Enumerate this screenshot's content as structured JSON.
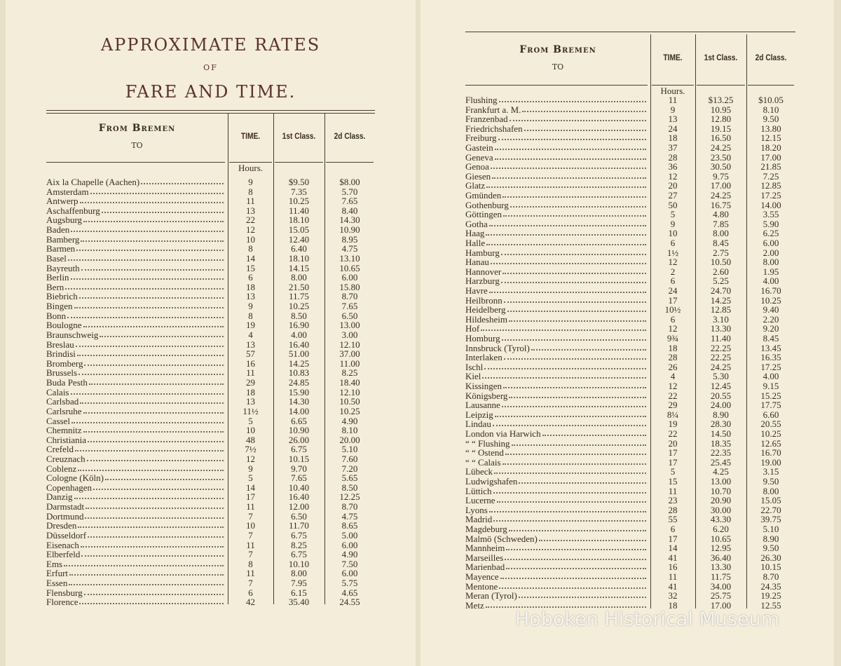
{
  "left_page": {
    "title": [
      "APPROXIMATE RATES",
      "OF",
      "FARE AND TIME."
    ],
    "header": {
      "from": "From Bremen",
      "to": "to",
      "time": "TIME.",
      "first": "1st Class.",
      "second": "2d Class."
    },
    "units": "Hours.",
    "rows": [
      [
        "Aix la Chapelle (Aachen)",
        "9",
        "$9.50",
        "$8.00"
      ],
      [
        "Amsterdam",
        "8",
        "7.35",
        "5.70"
      ],
      [
        "Antwerp",
        "11",
        "10.25",
        "7.65"
      ],
      [
        "Aschaffenburg",
        "13",
        "11.40",
        "8.40"
      ],
      [
        "Augsburg",
        "22",
        "18.10",
        "14.30"
      ],
      [
        "Baden",
        "12",
        "15.05",
        "10.90"
      ],
      [
        "Bamberg",
        "10",
        "12.40",
        "8.95"
      ],
      [
        "Barmen",
        "8",
        "6.40",
        "4.75"
      ],
      [
        "Basel",
        "14",
        "18.10",
        "13.10"
      ],
      [
        "Bayreuth",
        "15",
        "14.15",
        "10.65"
      ],
      [
        "Berlin",
        "6",
        "8.00",
        "6.00"
      ],
      [
        "Bern",
        "18",
        "21.50",
        "15.80"
      ],
      [
        "Biebrich",
        "13",
        "11.75",
        "8.70"
      ],
      [
        "Bingen",
        "9",
        "10.25",
        "7.65"
      ],
      [
        "Bonn",
        "8",
        "8.50",
        "6.50"
      ],
      [
        "Boulogne",
        "19",
        "16.90",
        "13.00"
      ],
      [
        "Braunschweig",
        "4",
        "4.00",
        "3.00"
      ],
      [
        "Breslau",
        "13",
        "16.40",
        "12.10"
      ],
      [
        "Brindisi",
        "57",
        "51.00",
        "37.00"
      ],
      [
        "Bromberg",
        "16",
        "14.25",
        "11.00"
      ],
      [
        "Brussels",
        "11",
        "10.83",
        "8.25"
      ],
      [
        "Buda Pesth",
        "29",
        "24.85",
        "18.40"
      ],
      [
        "Calais",
        "18",
        "15.90",
        "12.10"
      ],
      [
        "Carlsbad",
        "13",
        "14.30",
        "10.50"
      ],
      [
        "Carlsruhe",
        "11½",
        "14.00",
        "10.25"
      ],
      [
        "Cassel",
        "5",
        "6.65",
        "4.90"
      ],
      [
        "Chemnitz",
        "10",
        "10.90",
        "8.10"
      ],
      [
        "Christiania",
        "48",
        "26.00",
        "20.00"
      ],
      [
        "Crefeld",
        "7½",
        "6.75",
        "5.10"
      ],
      [
        "Creuznach",
        "12",
        "10.15",
        "7.60"
      ],
      [
        "Coblenz",
        "9",
        "9.70",
        "7.20"
      ],
      [
        "Cologne (Köln)",
        "5",
        "7.65",
        "5.65"
      ],
      [
        "Copenhagen",
        "14",
        "10.40",
        "8.50"
      ],
      [
        "Danzig",
        "17",
        "16.40",
        "12.25"
      ],
      [
        "Darmstadt",
        "11",
        "12.00",
        "8.70"
      ],
      [
        "Dortmund",
        "7",
        "6.50",
        "4.75"
      ],
      [
        "Dresden",
        "10",
        "11.70",
        "8.65"
      ],
      [
        "Düsseldorf",
        "7",
        "6.75",
        "5.00"
      ],
      [
        "Eisenach",
        "11",
        "8.25",
        "6.00"
      ],
      [
        "Elberfeld",
        "7",
        "6.75",
        "4.90"
      ],
      [
        "Ems",
        "8",
        "10.10",
        "7.50"
      ],
      [
        "Erfurt",
        "11",
        "8.00",
        "6.00"
      ],
      [
        "Essen",
        "7",
        "7.95",
        "5.75"
      ],
      [
        "Flensburg",
        "6",
        "6.15",
        "4.65"
      ],
      [
        "Florence",
        "42",
        "35.40",
        "24.55"
      ]
    ]
  },
  "right_page": {
    "header": {
      "from": "From Bremen",
      "to": "to",
      "time": "TIME.",
      "first": "1st Class.",
      "second": "2d Class."
    },
    "units": "Hours.",
    "rows": [
      [
        "Flushing",
        "11",
        "$13.25",
        "$10.05"
      ],
      [
        "Frankfurt a. M.",
        "9",
        "10.95",
        "8.10"
      ],
      [
        "Franzenbad",
        "13",
        "12.80",
        "9.50"
      ],
      [
        "Friedrichshafen",
        "24",
        "19.15",
        "13.80"
      ],
      [
        "Freiburg",
        "18",
        "16.50",
        "12.15"
      ],
      [
        "Gastein",
        "37",
        "24.25",
        "18.20"
      ],
      [
        "Geneva",
        "28",
        "23.50",
        "17.00"
      ],
      [
        "Genoa",
        "36",
        "30.50",
        "21.85"
      ],
      [
        "Giesen",
        "12",
        "9.75",
        "7.25"
      ],
      [
        "Glatz",
        "20",
        "17.00",
        "12.85"
      ],
      [
        "Gmünden",
        "27",
        "24.25",
        "17.25"
      ],
      [
        "Gothenburg",
        "50",
        "16.75",
        "14.00"
      ],
      [
        "Göttingen",
        "5",
        "4.80",
        "3.55"
      ],
      [
        "Gotha",
        "9",
        "7.85",
        "5.90"
      ],
      [
        "Haag",
        "10",
        "8.00",
        "6.25"
      ],
      [
        "Halle",
        "6",
        "8.45",
        "6.00"
      ],
      [
        "Hamburg",
        "1½",
        "2.75",
        "2.00"
      ],
      [
        "Hanau",
        "12",
        "10.50",
        "8.00"
      ],
      [
        "Hannover",
        "2",
        "2.60",
        "1.95"
      ],
      [
        "Harzburg",
        "6",
        "5.25",
        "4.00"
      ],
      [
        "Havre",
        "24",
        "24.70",
        "16.70"
      ],
      [
        "Heilbronn",
        "17",
        "14.25",
        "10.25"
      ],
      [
        "Heidelberg",
        "10½",
        "12.85",
        "9.40"
      ],
      [
        "Hildesheim",
        "6",
        "3.10",
        "2.20"
      ],
      [
        "Hof",
        "12",
        "13.30",
        "9.20"
      ],
      [
        "Homburg",
        "9¾",
        "11.40",
        "8.45"
      ],
      [
        "Innsbruck (Tyrol)",
        "18",
        "22.25",
        "13.45"
      ],
      [
        "Interlaken",
        "28",
        "22.25",
        "16.35"
      ],
      [
        "Ischl",
        "26",
        "24.25",
        "17.25"
      ],
      [
        "Kiel",
        "4",
        "5.30",
        "4.00"
      ],
      [
        "Kissingen",
        "12",
        "12.45",
        "9.15"
      ],
      [
        "Königsberg",
        "22",
        "20.55",
        "15.25"
      ],
      [
        "Lausanne",
        "29",
        "24.00",
        "17.75"
      ],
      [
        "Leipzig",
        "8¼",
        "8.90",
        "6.60"
      ],
      [
        "Lindau",
        "19",
        "28.30",
        "20.55"
      ],
      [
        "London via Harwich",
        "22",
        "14.50",
        "10.25"
      ],
      [
        "“ “ Flushing",
        "20",
        "18.35",
        "12.65"
      ],
      [
        "“ “ Ostend",
        "17",
        "22.35",
        "16.70"
      ],
      [
        "“ “ Calais",
        "17",
        "25.45",
        "19.00"
      ],
      [
        "Lübeck",
        "5",
        "4.25",
        "3.15"
      ],
      [
        "Ludwigshafen",
        "15",
        "13.00",
        "9.50"
      ],
      [
        "Lüttich",
        "11",
        "10.70",
        "8.00"
      ],
      [
        "Lucerne",
        "23",
        "20.90",
        "15.05"
      ],
      [
        "Lyons",
        "28",
        "30.00",
        "22.70"
      ],
      [
        "Madrid",
        "55",
        "43.30",
        "39.75"
      ],
      [
        "Magdeburg",
        "6",
        "6.20",
        "5.10"
      ],
      [
        "Malmö (Schweden)",
        "17",
        "10.65",
        "8.90"
      ],
      [
        "Mannheim",
        "14",
        "12.95",
        "9.50"
      ],
      [
        "Marseilles",
        "41",
        "36.40",
        "26.30"
      ],
      [
        "Marienbad",
        "16",
        "13.30",
        "10.15"
      ],
      [
        "Mayence",
        "11",
        "11.75",
        "8.70"
      ],
      [
        "Mentone",
        "41",
        "34.00",
        "24.35"
      ],
      [
        "Meran (Tyrol)",
        "32",
        "25.75",
        "19.25"
      ],
      [
        "Metz",
        "18",
        "17.00",
        "12.55"
      ]
    ]
  },
  "watermark": "Hoboken Historical Museum"
}
